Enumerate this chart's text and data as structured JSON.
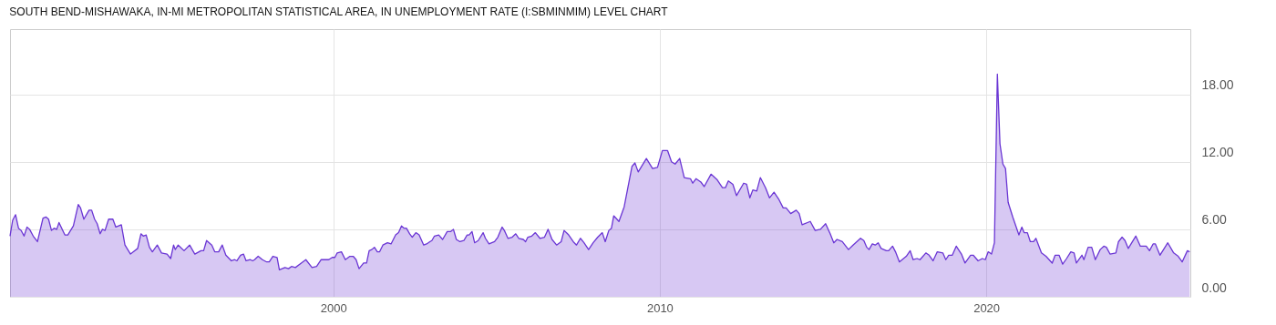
{
  "chart_data": {
    "type": "area",
    "title": "SOUTH BEND-MISHAWAKA, IN-MI METROPOLITAN STATISTICAL AREA, IN UNEMPLOYMENT RATE (I:SBMINMIM) LEVEL CHART",
    "xlim": [
      1990.1,
      2026.25
    ],
    "xticks": [
      2000,
      2010,
      2020
    ],
    "ylim": [
      0,
      23.8
    ],
    "yticks": [
      {
        "value": 0,
        "label": "0.00"
      },
      {
        "value": 6,
        "label": "6.00"
      },
      {
        "value": 12,
        "label": "12.00"
      },
      {
        "value": 18,
        "label": "18.00"
      }
    ],
    "grid": true,
    "series": [
      {
        "color": "#6a35d4",
        "x": [
          1990.1,
          1990.18,
          1990.27,
          1990.36,
          1990.44,
          1990.53,
          1990.62,
          1990.7,
          1990.81,
          1990.94,
          1991.11,
          1991.2,
          1991.28,
          1991.37,
          1991.45,
          1991.53,
          1991.6,
          1991.78,
          1991.87,
          1992.04,
          1992.19,
          1992.26,
          1992.36,
          1992.52,
          1992.6,
          1992.69,
          1992.77,
          1992.86,
          1992.93,
          1993.01,
          1993.12,
          1993.25,
          1993.34,
          1993.51,
          1993.62,
          1993.79,
          1993.88,
          1994.01,
          1994.11,
          1994.18,
          1994.27,
          1994.37,
          1994.46,
          1994.61,
          1994.74,
          1994.91,
          1995.02,
          1995.11,
          1995.16,
          1995.25,
          1995.43,
          1995.6,
          1995.76,
          1995.95,
          1996.03,
          1996.12,
          1996.28,
          1996.37,
          1996.49,
          1996.6,
          1996.71,
          1996.88,
          1996.98,
          1997.05,
          1997.16,
          1997.25,
          1997.33,
          1997.46,
          1997.53,
          1997.59,
          1997.7,
          1997.83,
          1997.96,
          1998.04,
          1998.15,
          1998.28,
          1998.35,
          1998.52,
          1998.63,
          1998.72,
          1998.84,
          1999.02,
          1999.16,
          1999.35,
          1999.49,
          1999.63,
          1999.77,
          1999.86,
          1999.97,
          2000.05,
          2000.12,
          2000.25,
          2000.37,
          2000.51,
          2000.61,
          2000.7,
          2000.79,
          2000.93,
          2001.02,
          2001.1,
          2001.18,
          2001.26,
          2001.35,
          2001.42,
          2001.52,
          2001.66,
          2001.77,
          2001.91,
          2002.0,
          2002.09,
          2002.17,
          2002.24,
          2002.34,
          2002.42,
          2002.53,
          2002.63,
          2002.77,
          2002.86,
          2002.96,
          2003.02,
          2003.1,
          2003.23,
          2003.35,
          2003.49,
          2003.6,
          2003.68,
          2003.77,
          2003.88,
          2004.0,
          2004.1,
          2004.16,
          2004.25,
          2004.33,
          2004.44,
          2004.59,
          2004.66,
          2004.77,
          2004.94,
          2005.04,
          2005.17,
          2005.24,
          2005.35,
          2005.48,
          2005.59,
          2005.68,
          2005.82,
          2005.89,
          2005.96,
          2006.08,
          2006.19,
          2006.33,
          2006.47,
          2006.58,
          2006.7,
          2006.84,
          2006.98,
          2007.07,
          2007.21,
          2007.35,
          2007.45,
          2007.57,
          2007.68,
          2007.82,
          2007.96,
          2008.1,
          2008.24,
          2008.33,
          2008.44,
          2008.52,
          2008.59,
          2008.75,
          2008.91,
          2009.15,
          2009.24,
          2009.34,
          2009.59,
          2009.78,
          2009.93,
          2010.08,
          2010.24,
          2010.36,
          2010.47,
          2010.61,
          2010.75,
          2010.94,
          2011.01,
          2011.11,
          2011.26,
          2011.36,
          2011.57,
          2011.76,
          2011.92,
          2012.01,
          2012.1,
          2012.24,
          2012.35,
          2012.57,
          2012.66,
          2012.76,
          2012.85,
          2012.97,
          2013.08,
          2013.24,
          2013.36,
          2013.5,
          2013.64,
          2013.78,
          2013.87,
          2014.01,
          2014.18,
          2014.27,
          2014.36,
          2014.61,
          2014.76,
          2014.92,
          2015.08,
          2015.22,
          2015.33,
          2015.43,
          2015.59,
          2015.78,
          2015.92,
          2016.15,
          2016.25,
          2016.34,
          2016.41,
          2016.51,
          2016.6,
          2016.69,
          2016.78,
          2016.94,
          2017.01,
          2017.13,
          2017.22,
          2017.34,
          2017.55,
          2017.67,
          2017.76,
          2017.88,
          2017.97,
          2018.15,
          2018.25,
          2018.37,
          2018.5,
          2018.67,
          2018.76,
          2018.85,
          2018.96,
          2019.08,
          2019.24,
          2019.35,
          2019.52,
          2019.6,
          2019.75,
          2019.88,
          2019.97,
          2020.06,
          2020.16,
          2020.25,
          2020.34,
          2020.42,
          2020.51,
          2020.59,
          2020.67,
          2020.81,
          2021.0,
          2021.09,
          2021.16,
          2021.26,
          2021.35,
          2021.45,
          2021.52,
          2021.69,
          2021.83,
          2022.02,
          2022.11,
          2022.23,
          2022.34,
          2022.46,
          2022.59,
          2022.69,
          2022.76,
          2022.93,
          2022.99,
          2023.12,
          2023.23,
          2023.34,
          2023.49,
          2023.6,
          2023.68,
          2023.79,
          2023.97,
          2024.05,
          2024.16,
          2024.25,
          2024.35,
          2024.58,
          2024.72,
          2024.9,
          2025.0,
          2025.11,
          2025.18,
          2025.32,
          2025.56,
          2025.74,
          2025.88,
          2026.0,
          2026.16,
          2026.23
        ],
        "values": [
          5.4,
          6.8,
          7.3,
          6.1,
          5.9,
          5.4,
          6.2,
          6.0,
          5.4,
          4.9,
          7.0,
          7.1,
          6.9,
          5.9,
          6.1,
          6.0,
          6.6,
          5.5,
          5.5,
          6.3,
          8.2,
          7.9,
          6.9,
          7.7,
          7.7,
          6.9,
          6.5,
          5.6,
          6.0,
          5.9,
          6.9,
          6.9,
          6.2,
          6.4,
          4.6,
          3.8,
          4.0,
          4.3,
          5.6,
          5.4,
          5.5,
          4.4,
          4.0,
          4.6,
          3.9,
          3.8,
          3.4,
          4.6,
          4.2,
          4.6,
          4.1,
          4.6,
          3.8,
          4.1,
          4.1,
          5.0,
          4.6,
          4.0,
          4.0,
          4.6,
          3.7,
          3.2,
          3.3,
          3.2,
          3.7,
          3.8,
          3.2,
          3.3,
          3.2,
          3.3,
          3.6,
          3.3,
          3.1,
          3.1,
          3.6,
          3.5,
          2.4,
          2.6,
          2.5,
          2.7,
          2.6,
          3.0,
          3.3,
          2.6,
          2.7,
          3.3,
          3.3,
          3.3,
          3.5,
          3.5,
          3.9,
          4.0,
          3.3,
          3.6,
          3.6,
          3.3,
          2.5,
          3.0,
          3.0,
          4.1,
          4.2,
          4.4,
          4.0,
          4.0,
          4.6,
          4.8,
          4.7,
          5.5,
          5.7,
          6.3,
          6.1,
          6.1,
          5.6,
          5.3,
          5.7,
          5.5,
          4.6,
          4.7,
          4.9,
          5.0,
          5.4,
          5.5,
          5.1,
          5.8,
          5.8,
          6.0,
          5.1,
          4.9,
          5.0,
          5.5,
          5.5,
          5.8,
          4.8,
          5.0,
          5.7,
          5.2,
          4.7,
          4.9,
          5.3,
          6.2,
          5.9,
          5.2,
          5.3,
          5.6,
          5.2,
          5.1,
          4.9,
          5.3,
          5.4,
          5.7,
          5.2,
          5.3,
          6.0,
          5.1,
          4.6,
          4.9,
          5.9,
          5.5,
          4.9,
          4.6,
          5.2,
          4.8,
          4.2,
          4.8,
          5.3,
          5.7,
          4.9,
          5.9,
          6.1,
          7.2,
          6.7,
          8.0,
          11.6,
          11.9,
          11.1,
          12.3,
          11.4,
          11.5,
          13.0,
          13.0,
          12.0,
          11.8,
          12.3,
          10.6,
          10.5,
          10.1,
          10.5,
          10.2,
          9.8,
          10.9,
          10.4,
          9.7,
          9.7,
          10.3,
          10.0,
          9.0,
          10.1,
          10.0,
          8.8,
          9.5,
          9.4,
          10.6,
          9.7,
          8.8,
          9.3,
          8.7,
          7.9,
          7.9,
          7.4,
          7.7,
          7.4,
          6.4,
          6.7,
          5.9,
          6.0,
          6.5,
          5.6,
          4.8,
          5.1,
          4.9,
          4.2,
          4.6,
          5.2,
          5.0,
          4.4,
          4.2,
          4.7,
          4.6,
          4.8,
          4.3,
          4.1,
          4.1,
          4.5,
          4.0,
          3.1,
          3.6,
          4.1,
          3.3,
          3.4,
          3.3,
          3.9,
          3.7,
          3.2,
          4.0,
          3.9,
          3.3,
          3.7,
          3.7,
          4.5,
          3.8,
          3.0,
          3.7,
          3.7,
          3.2,
          3.4,
          3.3,
          4.0,
          3.8,
          4.8,
          19.8,
          13.6,
          11.8,
          11.4,
          8.4,
          7.1,
          5.5,
          6.2,
          5.7,
          5.7,
          4.9,
          4.9,
          5.2,
          3.9,
          3.6,
          3.0,
          3.7,
          3.7,
          2.9,
          3.4,
          4.0,
          3.9,
          3.0,
          3.7,
          3.3,
          4.4,
          4.4,
          3.3,
          4.2,
          4.5,
          4.4,
          3.8,
          3.9,
          4.9,
          5.3,
          5.0,
          4.3,
          5.4,
          4.5,
          4.5,
          4.1,
          4.7,
          4.7,
          3.7,
          4.8,
          3.9,
          3.6,
          3.1,
          4.1,
          4.0
        ]
      }
    ]
  }
}
